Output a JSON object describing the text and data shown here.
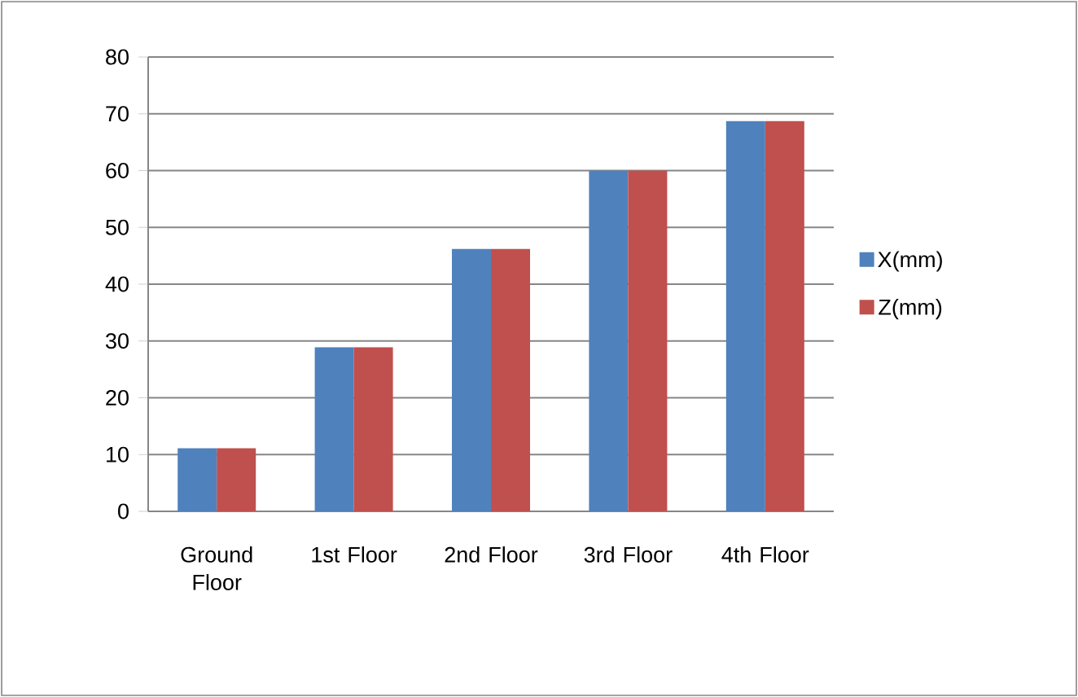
{
  "chart_data": {
    "type": "bar",
    "categories": [
      "Ground Floor",
      "1st Floor",
      "2nd Floor",
      "3rd Floor",
      "4th Floor"
    ],
    "series": [
      {
        "name": "X(mm)",
        "color": "#4f81bd",
        "values": [
          11.1,
          28.9,
          46.2,
          60.0,
          68.7
        ]
      },
      {
        "name": "Z(mm)",
        "color": "#c0504d",
        "values": [
          11.1,
          28.9,
          46.2,
          60.0,
          68.7
        ]
      }
    ],
    "ylim": [
      0,
      80
    ],
    "yticks": [
      0,
      10,
      20,
      30,
      40,
      50,
      60,
      70,
      80
    ],
    "grid": "y",
    "legend": "right"
  }
}
